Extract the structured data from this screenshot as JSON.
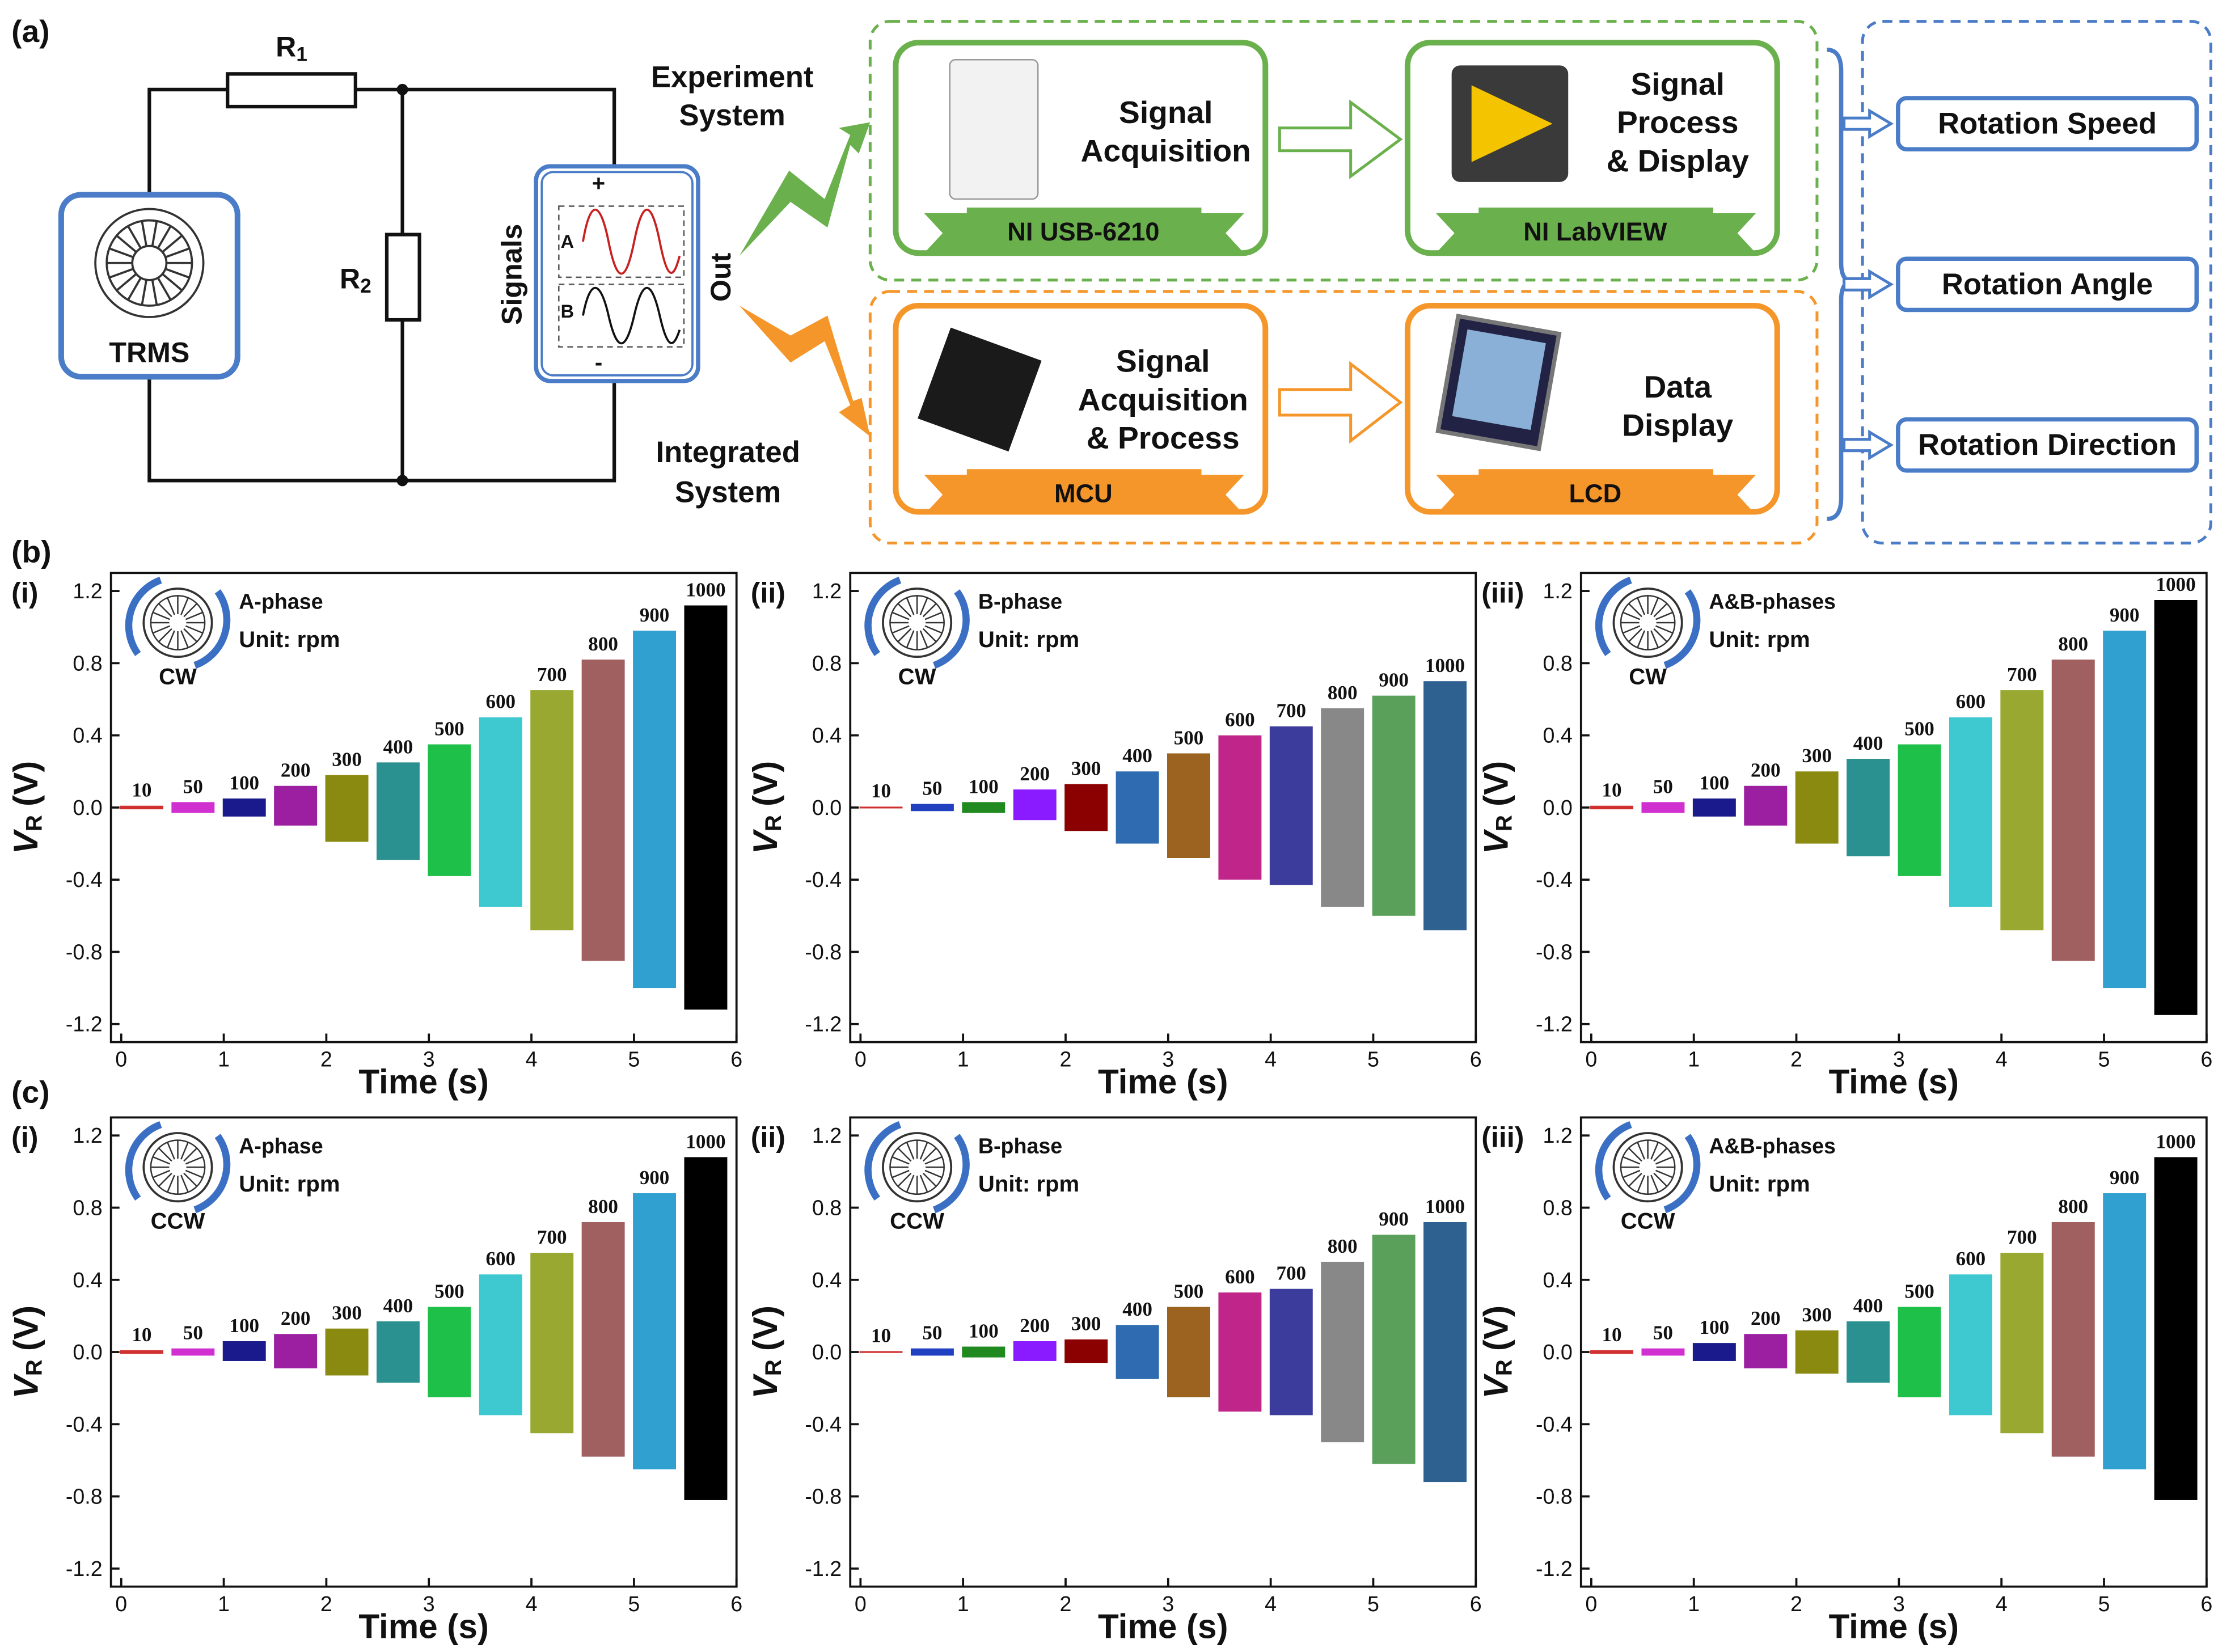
{
  "panel_labels": [
    "(a)",
    "(b)",
    "(c)"
  ],
  "diagram": {
    "circuit": {
      "r1": [
        "R",
        "1"
      ],
      "r2": [
        "R",
        "2"
      ],
      "source": "TRMS",
      "signals": "Signals",
      "channels": [
        "A",
        "B"
      ],
      "plus": "+",
      "minus": "-",
      "out": "Out"
    },
    "paths": {
      "experiment": [
        "Experiment",
        "System"
      ],
      "integrated": [
        "Integrated",
        "System"
      ]
    },
    "experiment_system": [
      {
        "title": [
          "Signal",
          "Acquisition"
        ],
        "device": "NI USB-6210"
      },
      {
        "title": [
          "Signal",
          "Process",
          "& Display"
        ],
        "device": "NI LabVIEW"
      }
    ],
    "integrated_system": [
      {
        "title": [
          "Signal",
          "Acquisition",
          "& Process"
        ],
        "device": "MCU"
      },
      {
        "title": [
          "Data",
          "Display"
        ],
        "device": "LCD"
      }
    ],
    "outputs": [
      "Rotation Speed",
      "Rotation Angle",
      "Rotation Direction"
    ]
  },
  "chart_data": [
    {
      "type": "band",
      "tag": "(i)",
      "phase": "A-phase",
      "unit": "Unit: rpm",
      "direction": "CW",
      "xlabel": "Time (s)",
      "ylabel": "V",
      "ylabel_sub": "R",
      "ylabel_unit": "(V)",
      "xlim": [
        -0.1,
        6
      ],
      "xticks": [
        0,
        1,
        2,
        3,
        4,
        5,
        6
      ],
      "ylim": [
        -1.3,
        1.3
      ],
      "yticks": [
        -1.2,
        -0.8,
        -0.4,
        {
          "value": 0,
          "label": "0.0"
        },
        0.4,
        0.8,
        1.2
      ],
      "categories": [
        "10",
        "50",
        "100",
        "200",
        "300",
        "400",
        "500",
        "600",
        "700",
        "800",
        "900",
        "1000"
      ],
      "x": [
        0.2,
        0.7,
        1.2,
        1.7,
        2.2,
        2.7,
        3.2,
        3.7,
        4.2,
        4.7,
        5.2,
        5.7
      ],
      "upper": [
        0.01,
        0.03,
        0.05,
        0.12,
        0.18,
        0.25,
        0.35,
        0.5,
        0.65,
        0.82,
        0.98,
        1.12
      ],
      "lower": [
        -0.01,
        -0.03,
        -0.05,
        -0.1,
        -0.19,
        -0.29,
        -0.38,
        -0.55,
        -0.68,
        -0.85,
        -1.0,
        -1.12
      ],
      "colors": [
        "#d03030",
        "#d030d0",
        "#1a1a8c",
        "#9b1fa0",
        "#8a8a10",
        "#2a9090",
        "#1fc04a",
        "#3ec8d0",
        "#98a830",
        "#a06060",
        "#30a0d0",
        "#000000"
      ]
    },
    {
      "type": "band",
      "tag": "(ii)",
      "phase": "B-phase",
      "unit": "Unit: rpm",
      "direction": "CW",
      "xlabel": "Time (s)",
      "ylabel": "V",
      "ylabel_sub": "R",
      "ylabel_unit": "(V)",
      "xlim": [
        -0.1,
        6
      ],
      "xticks": [
        0,
        1,
        2,
        3,
        4,
        5,
        6
      ],
      "ylim": [
        -1.3,
        1.3
      ],
      "yticks": [
        -1.2,
        -0.8,
        -0.4,
        {
          "value": 0,
          "label": "0.0"
        },
        0.4,
        0.8,
        1.2
      ],
      "categories": [
        "10",
        "50",
        "100",
        "200",
        "300",
        "400",
        "500",
        "600",
        "700",
        "800",
        "900",
        "1000"
      ],
      "x": [
        0.2,
        0.7,
        1.2,
        1.7,
        2.2,
        2.7,
        3.2,
        3.7,
        4.2,
        4.7,
        5.2,
        5.7
      ],
      "upper": [
        0.005,
        0.02,
        0.03,
        0.1,
        0.13,
        0.2,
        0.3,
        0.4,
        0.45,
        0.55,
        0.62,
        0.7
      ],
      "lower": [
        -0.005,
        -0.02,
        -0.03,
        -0.07,
        -0.13,
        -0.2,
        -0.28,
        -0.4,
        -0.43,
        -0.55,
        -0.6,
        -0.68
      ],
      "colors": [
        "#d03030",
        "#2040c0",
        "#208a20",
        "#8a1aff",
        "#8b0000",
        "#2e6bb0",
        "#9b6220",
        "#c0268a",
        "#3c3c9c",
        "#888888",
        "#5aa05a",
        "#2e6090"
      ]
    },
    {
      "type": "band",
      "tag": "(iii)",
      "phase": "A&B-phases",
      "unit": "Unit: rpm",
      "direction": "CW",
      "xlabel": "Time (s)",
      "ylabel": "V",
      "ylabel_sub": "R",
      "ylabel_unit": "(V)",
      "xlim": [
        -0.1,
        6
      ],
      "xticks": [
        0,
        1,
        2,
        3,
        4,
        5,
        6
      ],
      "ylim": [
        -1.3,
        1.3
      ],
      "yticks": [
        -1.2,
        -0.8,
        -0.4,
        {
          "value": 0,
          "label": "0.0"
        },
        0.4,
        0.8,
        1.2
      ],
      "categories": [
        "10",
        "50",
        "100",
        "200",
        "300",
        "400",
        "500",
        "600",
        "700",
        "800",
        "900",
        "1000"
      ],
      "x": [
        0.2,
        0.7,
        1.2,
        1.7,
        2.2,
        2.7,
        3.2,
        3.7,
        4.2,
        4.7,
        5.2,
        5.7
      ],
      "upper": [
        0.01,
        0.03,
        0.05,
        0.12,
        0.2,
        0.27,
        0.35,
        0.5,
        0.65,
        0.82,
        0.98,
        1.15
      ],
      "lower": [
        -0.01,
        -0.03,
        -0.05,
        -0.1,
        -0.2,
        -0.27,
        -0.38,
        -0.55,
        -0.68,
        -0.85,
        -1.0,
        -1.15
      ],
      "colors": [
        "#d03030",
        "#d030d0",
        "#1a1a8c",
        "#9b1fa0",
        "#8a8a10",
        "#2a9090",
        "#1fc04a",
        "#3ec8d0",
        "#98a830",
        "#a06060",
        "#30a0d0",
        "#000000"
      ]
    },
    {
      "type": "band",
      "tag": "(i)",
      "phase": "A-phase",
      "unit": "Unit: rpm",
      "direction": "CCW",
      "xlabel": "Time (s)",
      "ylabel": "V",
      "ylabel_sub": "R",
      "ylabel_unit": "(V)",
      "xlim": [
        -0.1,
        6
      ],
      "xticks": [
        0,
        1,
        2,
        3,
        4,
        5,
        6
      ],
      "ylim": [
        -1.3,
        1.3
      ],
      "yticks": [
        -1.2,
        -0.8,
        -0.4,
        {
          "value": 0,
          "label": "0.0"
        },
        0.4,
        0.8,
        1.2
      ],
      "categories": [
        "10",
        "50",
        "100",
        "200",
        "300",
        "400",
        "500",
        "600",
        "700",
        "800",
        "900",
        "1000"
      ],
      "x": [
        0.2,
        0.7,
        1.2,
        1.7,
        2.2,
        2.7,
        3.2,
        3.7,
        4.2,
        4.7,
        5.2,
        5.7
      ],
      "upper": [
        0.01,
        0.02,
        0.06,
        0.1,
        0.13,
        0.17,
        0.25,
        0.43,
        0.55,
        0.72,
        0.88,
        1.08
      ],
      "lower": [
        -0.01,
        -0.02,
        -0.05,
        -0.09,
        -0.13,
        -0.17,
        -0.25,
        -0.35,
        -0.45,
        -0.58,
        -0.65,
        -0.82
      ],
      "colors": [
        "#d03030",
        "#d030d0",
        "#1a1a8c",
        "#9b1fa0",
        "#8a8a10",
        "#2a9090",
        "#1fc04a",
        "#3ec8d0",
        "#98a830",
        "#a06060",
        "#30a0d0",
        "#000000"
      ]
    },
    {
      "type": "band",
      "tag": "(ii)",
      "phase": "B-phase",
      "unit": "Unit: rpm",
      "direction": "CCW",
      "xlabel": "Time (s)",
      "ylabel": "V",
      "ylabel_sub": "R",
      "ylabel_unit": "(V)",
      "xlim": [
        -0.1,
        6
      ],
      "xticks": [
        0,
        1,
        2,
        3,
        4,
        5,
        6
      ],
      "ylim": [
        -1.3,
        1.3
      ],
      "yticks": [
        -1.2,
        -0.8,
        -0.4,
        {
          "value": 0,
          "label": "0.0"
        },
        0.4,
        0.8,
        1.2
      ],
      "categories": [
        "10",
        "50",
        "100",
        "200",
        "300",
        "400",
        "500",
        "600",
        "700",
        "800",
        "900",
        "1000"
      ],
      "x": [
        0.2,
        0.7,
        1.2,
        1.7,
        2.2,
        2.7,
        3.2,
        3.7,
        4.2,
        4.7,
        5.2,
        5.7
      ],
      "upper": [
        0.005,
        0.02,
        0.03,
        0.06,
        0.07,
        0.15,
        0.25,
        0.33,
        0.35,
        0.5,
        0.65,
        0.72
      ],
      "lower": [
        -0.005,
        -0.02,
        -0.03,
        -0.05,
        -0.06,
        -0.15,
        -0.25,
        -0.33,
        -0.35,
        -0.5,
        -0.62,
        -0.72
      ],
      "colors": [
        "#d03030",
        "#2040c0",
        "#208a20",
        "#8a1aff",
        "#8b0000",
        "#2e6bb0",
        "#9b6220",
        "#c0268a",
        "#3c3c9c",
        "#888888",
        "#5aa05a",
        "#2e6090"
      ]
    },
    {
      "type": "band",
      "tag": "(iii)",
      "phase": "A&B-phases",
      "unit": "Unit: rpm",
      "direction": "CCW",
      "xlabel": "Time (s)",
      "ylabel": "V",
      "ylabel_sub": "R",
      "ylabel_unit": "(V)",
      "xlim": [
        -0.1,
        6
      ],
      "xticks": [
        0,
        1,
        2,
        3,
        4,
        5,
        6
      ],
      "ylim": [
        -1.3,
        1.3
      ],
      "yticks": [
        -1.2,
        -0.8,
        -0.4,
        {
          "value": 0,
          "label": "0.0"
        },
        0.4,
        0.8,
        1.2
      ],
      "categories": [
        "10",
        "50",
        "100",
        "200",
        "300",
        "400",
        "500",
        "600",
        "700",
        "800",
        "900",
        "1000"
      ],
      "x": [
        0.2,
        0.7,
        1.2,
        1.7,
        2.2,
        2.7,
        3.2,
        3.7,
        4.2,
        4.7,
        5.2,
        5.7
      ],
      "upper": [
        0.01,
        0.02,
        0.05,
        0.1,
        0.12,
        0.17,
        0.25,
        0.43,
        0.55,
        0.72,
        0.88,
        1.08
      ],
      "lower": [
        -0.01,
        -0.02,
        -0.05,
        -0.09,
        -0.12,
        -0.17,
        -0.25,
        -0.35,
        -0.45,
        -0.58,
        -0.65,
        -0.82
      ],
      "colors": [
        "#d03030",
        "#d030d0",
        "#1a1a8c",
        "#9b1fa0",
        "#8a8a10",
        "#2a9090",
        "#1fc04a",
        "#3ec8d0",
        "#98a830",
        "#a06060",
        "#30a0d0",
        "#000000"
      ]
    }
  ]
}
